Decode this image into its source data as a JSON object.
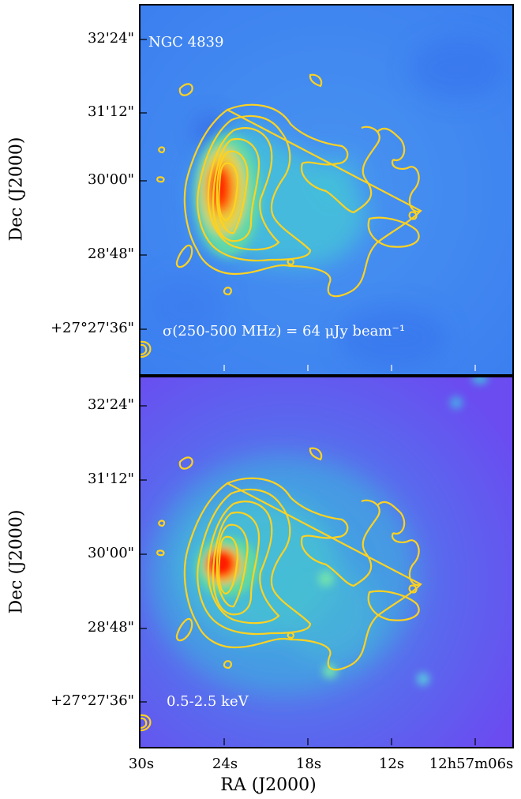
{
  "top_panel": {
    "object_label": "NGC 4839",
    "noise_label": "σ(250-500 MHz) = 64 μJy beam⁻¹"
  },
  "bottom_panel": {
    "band_label": "0.5-2.5 keV"
  },
  "axes": {
    "ylabel": "Dec (J2000)",
    "xlabel": "RA (J2000)",
    "yticks": [
      "32'24\"",
      "31'12\"",
      "30'00\"",
      "28'48\"",
      "+27°27'36\""
    ],
    "xticks": [
      "30s",
      "24s",
      "18s",
      "12s",
      "12h57m06s"
    ]
  },
  "colors": {
    "contour": "#ffd21f",
    "background_top": "#3f8cf2",
    "background_bottom": "#5a62ee",
    "peak": "#ff1a00"
  }
}
